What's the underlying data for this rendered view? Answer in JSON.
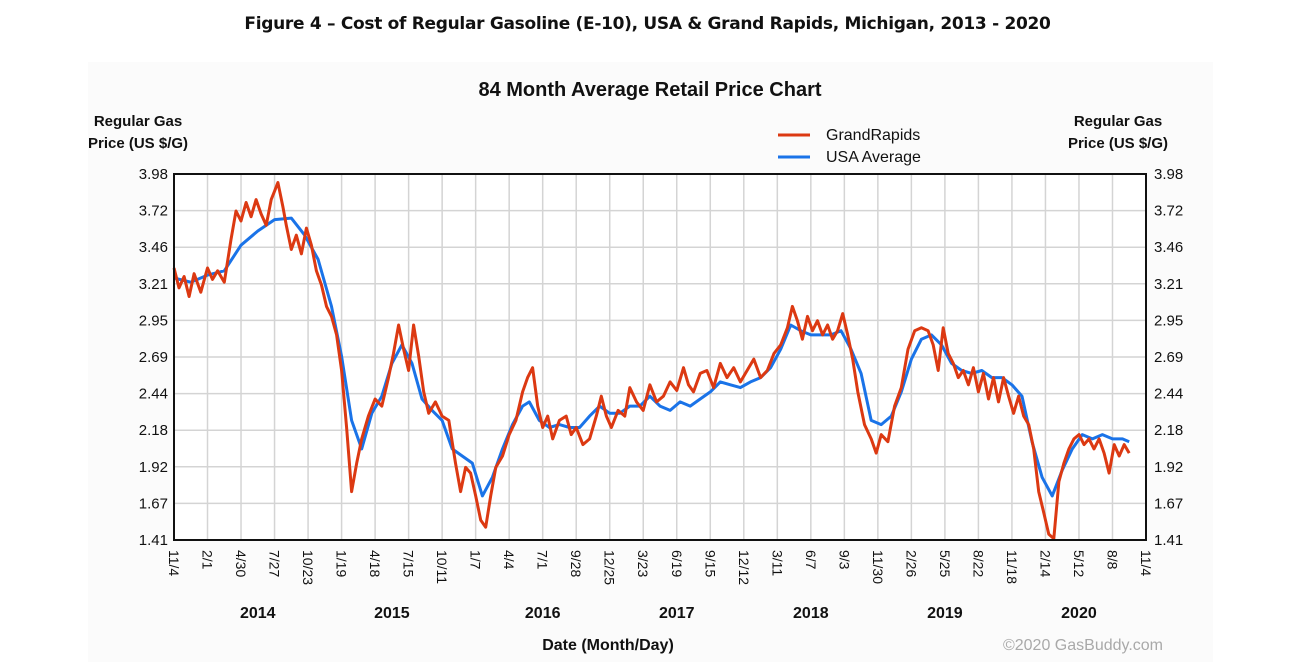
{
  "figure_title": "Figure 4 – Cost of Regular Gasoline (E-10), USA & Grand Rapids, Michigan, 2013 - 2020",
  "chart_data": {
    "type": "line",
    "title": "84 Month Average Retail Price Chart",
    "ylabel_left": [
      "Regular Gas",
      "Price (US $/G)"
    ],
    "ylabel_right": [
      "Regular Gas",
      "Price (US $/G)"
    ],
    "xlabel": "Date (Month/Day)",
    "credit": "©2020 GasBuddy.com",
    "ylim": [
      1.41,
      3.98
    ],
    "yticks": [
      "3.98",
      "3.72",
      "3.46",
      "3.21",
      "2.95",
      "2.69",
      "2.44",
      "2.18",
      "1.92",
      "1.67",
      "1.41"
    ],
    "xticks": [
      "11/4",
      "2/1",
      "4/30",
      "7/27",
      "10/23",
      "1/19",
      "4/18",
      "7/15",
      "10/11",
      "1/7",
      "4/4",
      "7/1",
      "9/28",
      "12/25",
      "3/23",
      "6/19",
      "9/15",
      "12/12",
      "3/11",
      "6/7",
      "9/3",
      "11/30",
      "2/26",
      "5/25",
      "8/22",
      "11/18",
      "2/14",
      "5/12",
      "8/8",
      "11/4"
    ],
    "year_labels": [
      {
        "label": "2014",
        "at_tick": 2.5
      },
      {
        "label": "2015",
        "at_tick": 6.5
      },
      {
        "label": "2016",
        "at_tick": 11
      },
      {
        "label": "2017",
        "at_tick": 15
      },
      {
        "label": "2018",
        "at_tick": 19
      },
      {
        "label": "2019",
        "at_tick": 23
      },
      {
        "label": "2020",
        "at_tick": 27
      }
    ],
    "grid": true,
    "legend_position": "top-right",
    "x_unit": "tick index (approx. 3-month steps, 11/4/2013 to 11/4/2020)",
    "series": [
      {
        "name": "GrandRapids",
        "color": "#dc3912",
        "points": [
          [
            0,
            3.32
          ],
          [
            0.15,
            3.18
          ],
          [
            0.3,
            3.26
          ],
          [
            0.45,
            3.12
          ],
          [
            0.6,
            3.28
          ],
          [
            0.8,
            3.15
          ],
          [
            1,
            3.32
          ],
          [
            1.15,
            3.24
          ],
          [
            1.3,
            3.3
          ],
          [
            1.5,
            3.22
          ],
          [
            1.7,
            3.52
          ],
          [
            1.85,
            3.72
          ],
          [
            2.0,
            3.65
          ],
          [
            2.15,
            3.78
          ],
          [
            2.3,
            3.68
          ],
          [
            2.45,
            3.8
          ],
          [
            2.6,
            3.7
          ],
          [
            2.75,
            3.62
          ],
          [
            2.9,
            3.8
          ],
          [
            3.0,
            3.86
          ],
          [
            3.1,
            3.92
          ],
          [
            3.25,
            3.75
          ],
          [
            3.35,
            3.62
          ],
          [
            3.5,
            3.45
          ],
          [
            3.65,
            3.55
          ],
          [
            3.8,
            3.42
          ],
          [
            3.95,
            3.6
          ],
          [
            4.1,
            3.48
          ],
          [
            4.25,
            3.3
          ],
          [
            4.4,
            3.2
          ],
          [
            4.55,
            3.05
          ],
          [
            4.7,
            2.98
          ],
          [
            4.85,
            2.85
          ],
          [
            5.0,
            2.6
          ],
          [
            5.15,
            2.2
          ],
          [
            5.3,
            1.75
          ],
          [
            5.45,
            1.95
          ],
          [
            5.6,
            2.12
          ],
          [
            5.8,
            2.28
          ],
          [
            6.0,
            2.4
          ],
          [
            6.2,
            2.35
          ],
          [
            6.4,
            2.55
          ],
          [
            6.55,
            2.72
          ],
          [
            6.7,
            2.92
          ],
          [
            6.85,
            2.75
          ],
          [
            7.0,
            2.6
          ],
          [
            7.15,
            2.92
          ],
          [
            7.3,
            2.7
          ],
          [
            7.45,
            2.45
          ],
          [
            7.6,
            2.3
          ],
          [
            7.8,
            2.38
          ],
          [
            8.0,
            2.28
          ],
          [
            8.2,
            2.25
          ],
          [
            8.4,
            1.95
          ],
          [
            8.55,
            1.75
          ],
          [
            8.7,
            1.92
          ],
          [
            8.85,
            1.88
          ],
          [
            9.0,
            1.72
          ],
          [
            9.15,
            1.55
          ],
          [
            9.3,
            1.5
          ],
          [
            9.45,
            1.72
          ],
          [
            9.6,
            1.92
          ],
          [
            9.8,
            2.0
          ],
          [
            10.0,
            2.15
          ],
          [
            10.2,
            2.25
          ],
          [
            10.4,
            2.45
          ],
          [
            10.55,
            2.55
          ],
          [
            10.7,
            2.62
          ],
          [
            10.85,
            2.35
          ],
          [
            11.0,
            2.2
          ],
          [
            11.15,
            2.28
          ],
          [
            11.3,
            2.12
          ],
          [
            11.5,
            2.25
          ],
          [
            11.7,
            2.28
          ],
          [
            11.85,
            2.15
          ],
          [
            12.0,
            2.2
          ],
          [
            12.2,
            2.08
          ],
          [
            12.4,
            2.12
          ],
          [
            12.6,
            2.28
          ],
          [
            12.75,
            2.42
          ],
          [
            12.9,
            2.28
          ],
          [
            13.05,
            2.2
          ],
          [
            13.25,
            2.32
          ],
          [
            13.45,
            2.28
          ],
          [
            13.6,
            2.48
          ],
          [
            13.8,
            2.38
          ],
          [
            14.0,
            2.32
          ],
          [
            14.2,
            2.5
          ],
          [
            14.4,
            2.38
          ],
          [
            14.6,
            2.42
          ],
          [
            14.8,
            2.52
          ],
          [
            15.0,
            2.46
          ],
          [
            15.2,
            2.62
          ],
          [
            15.35,
            2.5
          ],
          [
            15.5,
            2.45
          ],
          [
            15.7,
            2.58
          ],
          [
            15.9,
            2.6
          ],
          [
            16.1,
            2.48
          ],
          [
            16.3,
            2.65
          ],
          [
            16.5,
            2.55
          ],
          [
            16.7,
            2.62
          ],
          [
            16.9,
            2.52
          ],
          [
            17.1,
            2.6
          ],
          [
            17.3,
            2.68
          ],
          [
            17.5,
            2.55
          ],
          [
            17.7,
            2.6
          ],
          [
            17.9,
            2.72
          ],
          [
            18.1,
            2.78
          ],
          [
            18.3,
            2.9
          ],
          [
            18.45,
            3.05
          ],
          [
            18.6,
            2.95
          ],
          [
            18.75,
            2.82
          ],
          [
            18.9,
            2.98
          ],
          [
            19.05,
            2.88
          ],
          [
            19.2,
            2.95
          ],
          [
            19.35,
            2.85
          ],
          [
            19.5,
            2.92
          ],
          [
            19.65,
            2.82
          ],
          [
            19.8,
            2.88
          ],
          [
            19.95,
            3.0
          ],
          [
            20.1,
            2.85
          ],
          [
            20.25,
            2.68
          ],
          [
            20.4,
            2.45
          ],
          [
            20.6,
            2.22
          ],
          [
            20.8,
            2.12
          ],
          [
            20.95,
            2.02
          ],
          [
            21.1,
            2.15
          ],
          [
            21.3,
            2.1
          ],
          [
            21.5,
            2.35
          ],
          [
            21.7,
            2.48
          ],
          [
            21.9,
            2.75
          ],
          [
            22.1,
            2.88
          ],
          [
            22.3,
            2.9
          ],
          [
            22.5,
            2.88
          ],
          [
            22.65,
            2.78
          ],
          [
            22.8,
            2.6
          ],
          [
            22.95,
            2.9
          ],
          [
            23.1,
            2.72
          ],
          [
            23.25,
            2.65
          ],
          [
            23.4,
            2.55
          ],
          [
            23.55,
            2.6
          ],
          [
            23.7,
            2.5
          ],
          [
            23.85,
            2.62
          ],
          [
            24.0,
            2.45
          ],
          [
            24.15,
            2.58
          ],
          [
            24.3,
            2.4
          ],
          [
            24.45,
            2.55
          ],
          [
            24.6,
            2.38
          ],
          [
            24.75,
            2.55
          ],
          [
            24.9,
            2.42
          ],
          [
            25.05,
            2.3
          ],
          [
            25.2,
            2.42
          ],
          [
            25.35,
            2.28
          ],
          [
            25.5,
            2.22
          ],
          [
            25.65,
            2.05
          ],
          [
            25.8,
            1.75
          ],
          [
            25.95,
            1.6
          ],
          [
            26.1,
            1.45
          ],
          [
            26.25,
            1.42
          ],
          [
            26.4,
            1.82
          ],
          [
            26.55,
            1.95
          ],
          [
            26.7,
            2.05
          ],
          [
            26.85,
            2.12
          ],
          [
            27.0,
            2.15
          ],
          [
            27.15,
            2.08
          ],
          [
            27.3,
            2.12
          ],
          [
            27.45,
            2.05
          ],
          [
            27.6,
            2.12
          ],
          [
            27.75,
            2.02
          ],
          [
            27.9,
            1.88
          ],
          [
            28.05,
            2.08
          ],
          [
            28.2,
            2.0
          ],
          [
            28.35,
            2.08
          ],
          [
            28.5,
            2.02
          ]
        ]
      },
      {
        "name": "USA Average",
        "color": "#1a73e8",
        "points": [
          [
            0,
            3.25
          ],
          [
            0.5,
            3.22
          ],
          [
            1.0,
            3.27
          ],
          [
            1.5,
            3.3
          ],
          [
            2.0,
            3.48
          ],
          [
            2.5,
            3.58
          ],
          [
            3.0,
            3.66
          ],
          [
            3.5,
            3.67
          ],
          [
            3.9,
            3.55
          ],
          [
            4.3,
            3.38
          ],
          [
            4.7,
            3.05
          ],
          [
            5.0,
            2.7
          ],
          [
            5.3,
            2.25
          ],
          [
            5.6,
            2.05
          ],
          [
            5.9,
            2.3
          ],
          [
            6.2,
            2.42
          ],
          [
            6.5,
            2.65
          ],
          [
            6.8,
            2.78
          ],
          [
            7.1,
            2.65
          ],
          [
            7.4,
            2.4
          ],
          [
            7.7,
            2.32
          ],
          [
            8.0,
            2.25
          ],
          [
            8.3,
            2.05
          ],
          [
            8.6,
            2.0
          ],
          [
            8.9,
            1.95
          ],
          [
            9.2,
            1.72
          ],
          [
            9.5,
            1.85
          ],
          [
            9.8,
            2.05
          ],
          [
            10.1,
            2.22
          ],
          [
            10.4,
            2.35
          ],
          [
            10.6,
            2.38
          ],
          [
            10.9,
            2.25
          ],
          [
            11.2,
            2.2
          ],
          [
            11.5,
            2.22
          ],
          [
            11.8,
            2.2
          ],
          [
            12.1,
            2.2
          ],
          [
            12.4,
            2.28
          ],
          [
            12.7,
            2.35
          ],
          [
            13.0,
            2.3
          ],
          [
            13.3,
            2.3
          ],
          [
            13.6,
            2.35
          ],
          [
            13.9,
            2.35
          ],
          [
            14.2,
            2.42
          ],
          [
            14.5,
            2.35
          ],
          [
            14.8,
            2.32
          ],
          [
            15.1,
            2.38
          ],
          [
            15.4,
            2.35
          ],
          [
            15.7,
            2.4
          ],
          [
            16.0,
            2.45
          ],
          [
            16.3,
            2.52
          ],
          [
            16.6,
            2.5
          ],
          [
            16.9,
            2.48
          ],
          [
            17.2,
            2.52
          ],
          [
            17.5,
            2.55
          ],
          [
            17.8,
            2.62
          ],
          [
            18.1,
            2.75
          ],
          [
            18.4,
            2.92
          ],
          [
            18.7,
            2.88
          ],
          [
            19.0,
            2.85
          ],
          [
            19.3,
            2.85
          ],
          [
            19.6,
            2.85
          ],
          [
            19.9,
            2.88
          ],
          [
            20.2,
            2.75
          ],
          [
            20.5,
            2.58
          ],
          [
            20.8,
            2.25
          ],
          [
            21.1,
            2.22
          ],
          [
            21.4,
            2.28
          ],
          [
            21.7,
            2.45
          ],
          [
            22.0,
            2.68
          ],
          [
            22.3,
            2.82
          ],
          [
            22.6,
            2.85
          ],
          [
            22.9,
            2.78
          ],
          [
            23.2,
            2.65
          ],
          [
            23.5,
            2.6
          ],
          [
            23.8,
            2.58
          ],
          [
            24.1,
            2.6
          ],
          [
            24.4,
            2.55
          ],
          [
            24.7,
            2.55
          ],
          [
            25.0,
            2.5
          ],
          [
            25.3,
            2.42
          ],
          [
            25.6,
            2.1
          ],
          [
            25.9,
            1.85
          ],
          [
            26.2,
            1.72
          ],
          [
            26.5,
            1.9
          ],
          [
            26.8,
            2.05
          ],
          [
            27.1,
            2.15
          ],
          [
            27.4,
            2.12
          ],
          [
            27.7,
            2.15
          ],
          [
            28.0,
            2.12
          ],
          [
            28.3,
            2.12
          ],
          [
            28.5,
            2.1
          ]
        ]
      }
    ]
  }
}
